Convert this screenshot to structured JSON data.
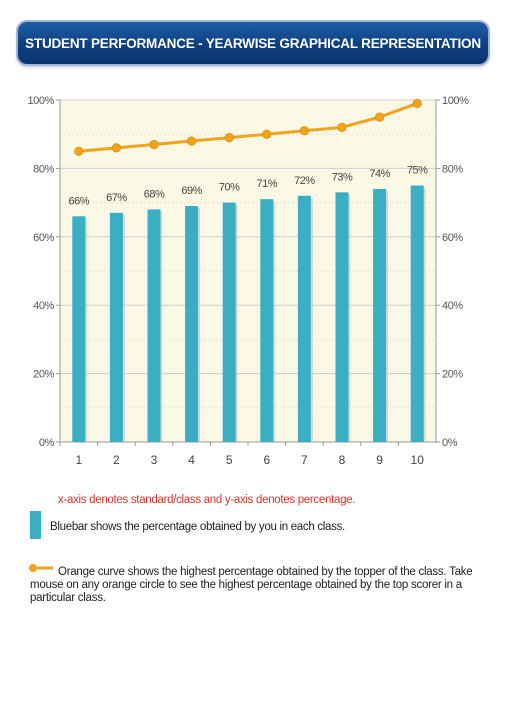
{
  "header": {
    "title": "STUDENT PERFORMANCE - YEARWISE GRAPHICAL REPRESENTATION"
  },
  "colors": {
    "bar": "#3aaec3",
    "line": "#f0a41e",
    "plot_bg": "#fcf8e6",
    "header": "#1a5699",
    "note": "#d8322a"
  },
  "chart_data": {
    "type": "bar",
    "categories": [
      "1",
      "2",
      "3",
      "4",
      "5",
      "6",
      "7",
      "8",
      "9",
      "10"
    ],
    "series": [
      {
        "values": [
          66,
          67,
          68,
          69,
          70,
          71,
          72,
          73,
          74,
          75
        ],
        "kind": "bar",
        "labels": [
          "66%",
          "67%",
          "68%",
          "69%",
          "70%",
          "71%",
          "72%",
          "73%",
          "74%",
          "75%"
        ]
      },
      {
        "values": [
          85,
          86,
          87,
          88,
          89,
          90,
          91,
          92,
          95,
          99
        ],
        "kind": "line"
      }
    ],
    "y_ticks": [
      "0%",
      "20%",
      "40%",
      "60%",
      "80%",
      "100%"
    ],
    "ylim": [
      0,
      100
    ],
    "grid": true
  },
  "notes": {
    "axis_note": "x-axis denotes standard/class and y-axis denotes percentage.",
    "bar_legend": "Bluebar shows the percentage obtained by you in each class.",
    "line_legend": "Orange curve shows the highest percentage obtained by the topper of the class. Take mouse on any orange circle to see the highest percentage obtained by the top scorer in a particular class."
  }
}
